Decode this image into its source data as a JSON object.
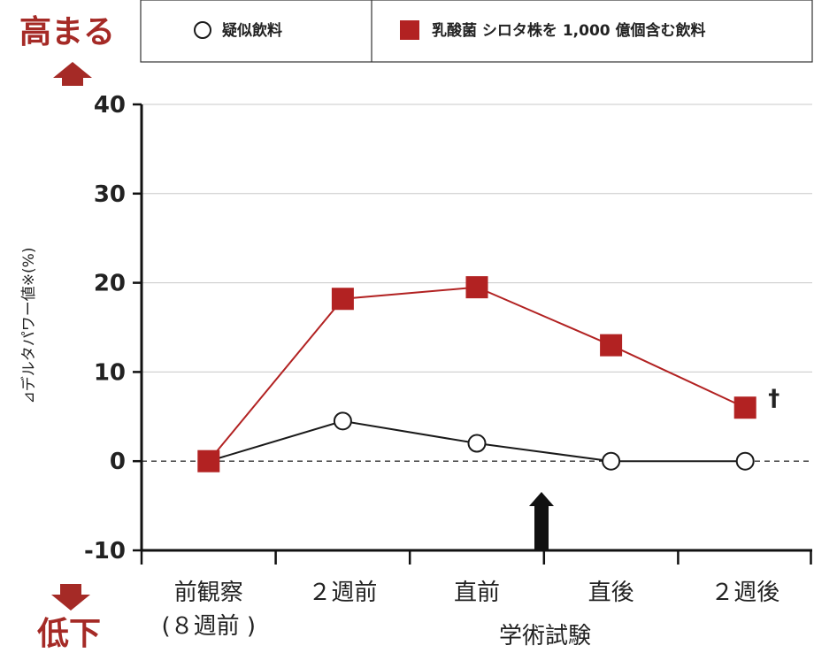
{
  "colors": {
    "red_series": "#b22222",
    "black_series": "#1a1a1a",
    "annotation": "#a52a26",
    "grid": "#c8c8c8"
  },
  "labels": {
    "up": "高まる",
    "down": "低下",
    "dagger": "†"
  },
  "chart_data": {
    "type": "line",
    "xlabel": "学術試験",
    "ylabel": "⊿デルタパワー値※(%)",
    "ylim": [
      -10,
      40
    ],
    "yticks": [
      40,
      30,
      20,
      10,
      0,
      -10
    ],
    "grid": true,
    "legend_position": "top",
    "categories": [
      [
        "前観察",
        "(８週前 )"
      ],
      [
        "２週前"
      ],
      [
        "直前"
      ],
      [
        "直後"
      ],
      [
        "２週後"
      ]
    ],
    "series": [
      {
        "name": "疑似飲料",
        "marker": "open-circle",
        "values": [
          0,
          4.5,
          2,
          0,
          0
        ]
      },
      {
        "name": "乳酸菌 シロタ株を 1,000 億個含む飲料",
        "marker": "filled-square",
        "values": [
          0,
          18.2,
          19.5,
          13,
          6
        ]
      }
    ]
  }
}
